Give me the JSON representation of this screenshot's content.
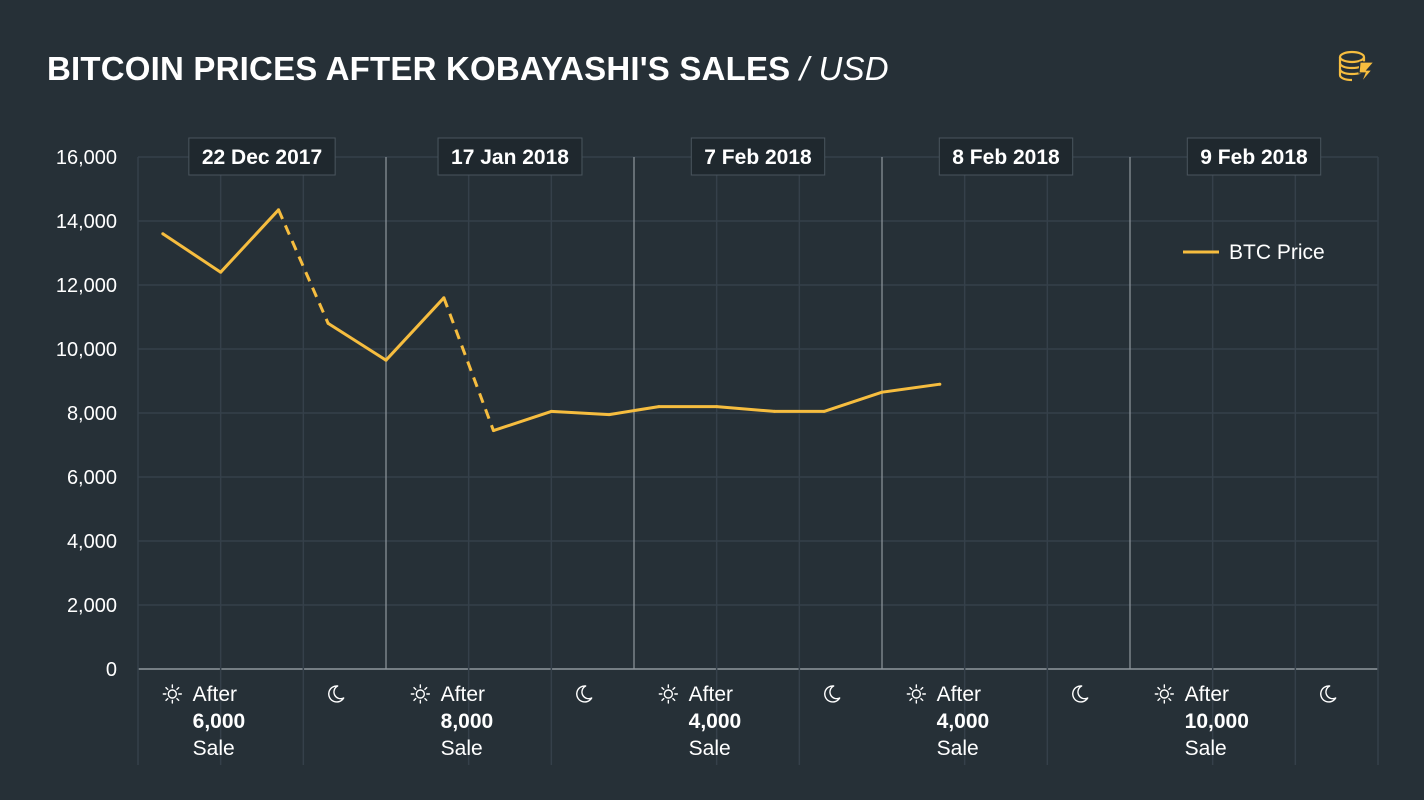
{
  "header": {
    "title": "BITCOIN PRICES AFTER KOBAYASHI'S SALES",
    "unit": " / USD",
    "logo_icon": "coin-stack-bolt-logo"
  },
  "colors": {
    "background": "#263037",
    "line": "#f6bd3f",
    "grid": "#35404a",
    "divider": "#8f979d",
    "box_bg": "#1f282e",
    "box_border": "#4a555e"
  },
  "chart_data": {
    "type": "line",
    "ylim": [
      0,
      16000
    ],
    "yticks": [
      0,
      2000,
      4000,
      6000,
      8000,
      10000,
      12000,
      14000,
      16000
    ],
    "ytick_labels": [
      "0",
      "2,000",
      "4,000",
      "6,000",
      "8,000",
      "10,000",
      "12,000",
      "14,000",
      "16,000"
    ],
    "legend": {
      "label": "BTC Price",
      "placement": "top-right"
    },
    "groups": [
      {
        "date": "22 Dec 2017",
        "after": "After",
        "amount": "6,000",
        "sale": "Sale",
        "day_icon": "sun-icon",
        "night_icon": "moon-icon"
      },
      {
        "date": "17 Jan 2018",
        "after": "After",
        "amount": "8,000",
        "sale": "Sale",
        "day_icon": "sun-icon",
        "night_icon": "moon-icon"
      },
      {
        "date": "7 Feb 2018",
        "after": "After",
        "amount": "4,000",
        "sale": "Sale",
        "day_icon": "sun-icon",
        "night_icon": "moon-icon"
      },
      {
        "date": "8 Feb 2018",
        "after": "After",
        "amount": "4,000",
        "sale": "Sale",
        "day_icon": "sun-icon",
        "night_icon": "moon-icon"
      },
      {
        "date": "9 Feb 2018",
        "after": "After",
        "amount": "10,000",
        "sale": "Sale",
        "day_icon": "sun-icon",
        "night_icon": "moon-icon"
      }
    ],
    "series": [
      {
        "name": "BTC Price",
        "points": [
          {
            "x": 0.3,
            "y": 13600
          },
          {
            "x": 1.0,
            "y": 12400
          },
          {
            "x": 1.7,
            "y": 14350
          },
          {
            "x": 2.3,
            "y": 10800
          },
          {
            "x": 3.0,
            "y": 9650
          },
          {
            "x": 3.7,
            "y": 11600
          },
          {
            "x": 4.3,
            "y": 7450
          },
          {
            "x": 5.0,
            "y": 8050
          },
          {
            "x": 5.7,
            "y": 7950
          },
          {
            "x": 6.3,
            "y": 8200
          },
          {
            "x": 7.0,
            "y": 8200
          },
          {
            "x": 7.7,
            "y": 8050
          },
          {
            "x": 8.3,
            "y": 8050
          },
          {
            "x": 9.0,
            "y": 8650
          },
          {
            "x": 9.7,
            "y": 8900
          }
        ],
        "dashed_segments": [
          2,
          5
        ]
      }
    ]
  }
}
